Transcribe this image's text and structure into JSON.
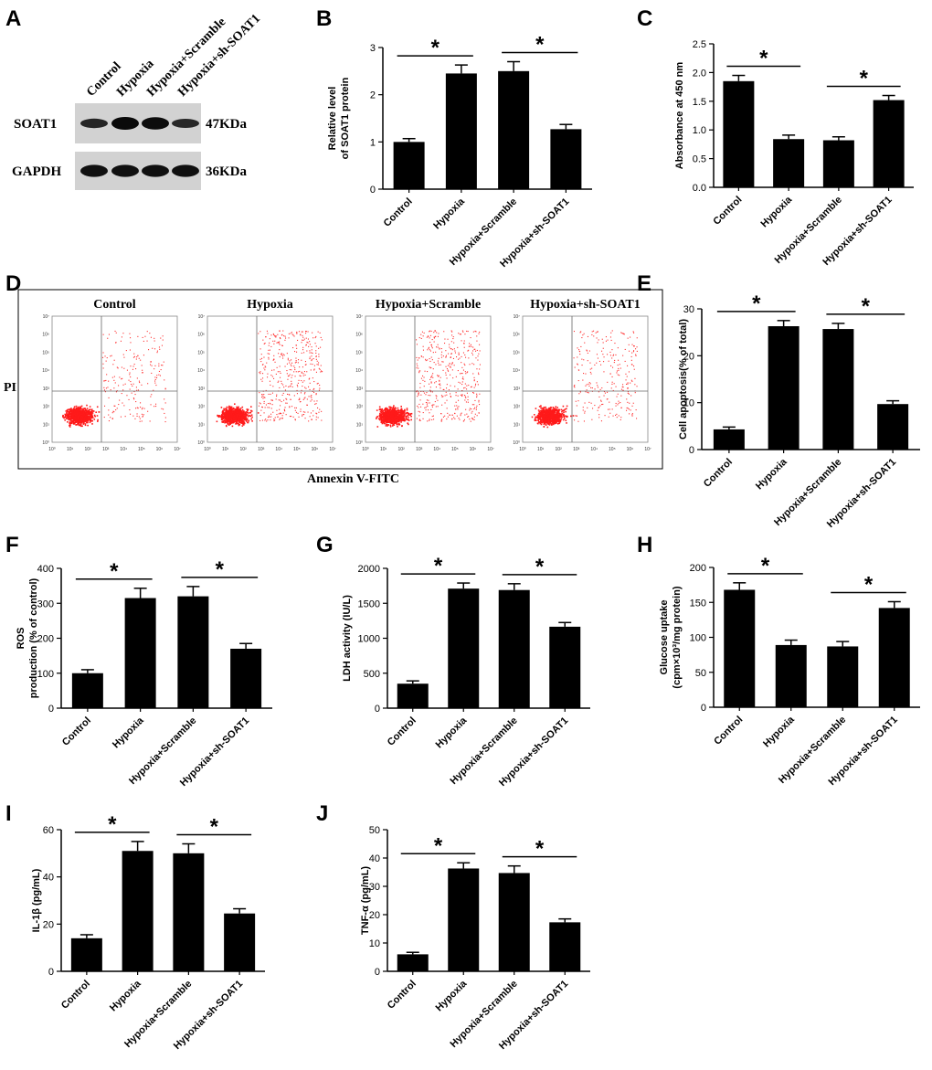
{
  "panel_letters": [
    "A",
    "B",
    "C",
    "D",
    "E",
    "F",
    "G",
    "H",
    "I",
    "J"
  ],
  "western_blot": {
    "lanes": [
      "Control",
      "Hypoxia",
      "Hypoxia+Scramble",
      "Hypoxia+sh-SOAT1"
    ],
    "rows": [
      {
        "label": "SOAT1",
        "size": "47KDa",
        "intensities": [
          0.55,
          1.0,
          0.95,
          0.5
        ]
      },
      {
        "label": "GAPDH",
        "size": "36KDa",
        "intensities": [
          0.9,
          0.9,
          0.9,
          0.9
        ]
      }
    ]
  },
  "flow": {
    "panels": [
      {
        "title": "Control",
        "density": 0.35
      },
      {
        "title": "Hypoxia",
        "density": 0.75
      },
      {
        "title": "Hypoxia+Scramble",
        "density": 0.75
      },
      {
        "title": "Hypoxia+sh-SOAT1",
        "density": 0.45
      }
    ],
    "y_axis_label": "PI",
    "x_axis_label": "Annexin V-FITC",
    "ticks": [
      "10⁰",
      "10¹",
      "10²",
      "10³",
      "10⁴",
      "10⁵",
      "10⁶",
      "10⁷"
    ]
  },
  "significance_mark": "*",
  "chart_data": [
    {
      "id": "B",
      "type": "bar",
      "categories": [
        "Control",
        "Hypoxia",
        "Hypoxia+Scramble",
        "Hypoxia+sh-SOAT1"
      ],
      "values": [
        1.0,
        2.45,
        2.5,
        1.27
      ],
      "errors": [
        0.07,
        0.18,
        0.2,
        0.1
      ],
      "ylabel": [
        "Relative level",
        "of SOAT1 protein"
      ],
      "ylim": [
        0,
        3
      ],
      "ticks": [
        0,
        1,
        2,
        3
      ],
      "tick_labels": [
        "0",
        "1",
        "2",
        "3"
      ],
      "brackets": [
        [
          0,
          1
        ],
        [
          2,
          3
        ]
      ]
    },
    {
      "id": "C",
      "type": "bar",
      "categories": [
        "Control",
        "Hypoxia",
        "Hypoxia+Scramble",
        "Hypoxia+sh-SOAT1"
      ],
      "values": [
        1.85,
        0.84,
        0.82,
        1.52
      ],
      "errors": [
        0.1,
        0.07,
        0.06,
        0.08
      ],
      "ylabel": [
        "Absorbance at 450 nm"
      ],
      "ylim": [
        0,
        2.5
      ],
      "ticks": [
        0,
        0.5,
        1.0,
        1.5,
        2.0,
        2.5
      ],
      "tick_labels": [
        "0.0",
        "0.5",
        "1.0",
        "1.5",
        "2.0",
        "2.5"
      ],
      "brackets": [
        [
          0,
          1
        ],
        [
          2,
          3
        ]
      ]
    },
    {
      "id": "E",
      "type": "bar",
      "categories": [
        "Control",
        "Hypoxia",
        "Hypoxia+Scramble",
        "Hypoxia+sh-SOAT1"
      ],
      "values": [
        4.3,
        26.3,
        25.7,
        9.7
      ],
      "errors": [
        0.5,
        1.2,
        1.2,
        0.7
      ],
      "ylabel": [
        "Cell apoptosis(% of total)"
      ],
      "ylim": [
        0,
        30
      ],
      "ticks": [
        0,
        10,
        20,
        30
      ],
      "tick_labels": [
        "0",
        "10",
        "20",
        "30"
      ],
      "brackets": [
        [
          0,
          1
        ],
        [
          2,
          3
        ]
      ]
    },
    {
      "id": "F",
      "type": "bar",
      "categories": [
        "Control",
        "Hypoxia",
        "Hypoxia+Scramble",
        "Hypoxia+sh-SOAT1"
      ],
      "values": [
        100,
        315,
        320,
        170
      ],
      "errors": [
        10,
        28,
        28,
        15
      ],
      "ylabel": [
        "ROS",
        "production (% of control)"
      ],
      "ylim": [
        0,
        400
      ],
      "ticks": [
        0,
        100,
        200,
        300,
        400
      ],
      "tick_labels": [
        "0",
        "100",
        "200",
        "300",
        "400"
      ],
      "brackets": [
        [
          0,
          1
        ],
        [
          2,
          3
        ]
      ]
    },
    {
      "id": "G",
      "type": "bar",
      "categories": [
        "Control",
        "Hypoxia",
        "Hypoxia+Scramble",
        "Hypoxia+sh-SOAT1"
      ],
      "values": [
        350,
        1710,
        1690,
        1165
      ],
      "errors": [
        40,
        80,
        90,
        60
      ],
      "ylabel": [
        "LDH activity (IU/L)"
      ],
      "ylim": [
        0,
        2000
      ],
      "ticks": [
        0,
        500,
        1000,
        1500,
        2000
      ],
      "tick_labels": [
        "0",
        "500",
        "1000",
        "1500",
        "2000"
      ],
      "brackets": [
        [
          0,
          1
        ],
        [
          2,
          3
        ]
      ]
    },
    {
      "id": "H",
      "type": "bar",
      "categories": [
        "Control",
        "Hypoxia",
        "Hypoxia+Scramble",
        "Hypoxia+sh-SOAT1"
      ],
      "values": [
        168,
        89,
        87,
        142
      ],
      "errors": [
        10,
        7,
        7,
        9
      ],
      "ylabel": [
        "Glucose uptake",
        "(cpm×10³/mg protein)"
      ],
      "ylim": [
        0,
        200
      ],
      "ticks": [
        0,
        50,
        100,
        150,
        200
      ],
      "tick_labels": [
        "0",
        "50",
        "100",
        "150",
        "200"
      ],
      "brackets": [
        [
          0,
          1
        ],
        [
          2,
          3
        ]
      ]
    },
    {
      "id": "I",
      "type": "bar",
      "categories": [
        "Control",
        "Hypoxia",
        "Hypoxia+Scramble",
        "Hypoxia+sh-SOAT1"
      ],
      "values": [
        14,
        51,
        50,
        24.5
      ],
      "errors": [
        1.5,
        4,
        4,
        2
      ],
      "ylabel": [
        "IL-1β  (pg/mL)"
      ],
      "ylim": [
        0,
        60
      ],
      "ticks": [
        0,
        20,
        40,
        60
      ],
      "tick_labels": [
        "0",
        "20",
        "40",
        "60"
      ],
      "brackets": [
        [
          0,
          1
        ],
        [
          2,
          3
        ]
      ]
    },
    {
      "id": "J",
      "type": "bar",
      "categories": [
        "Control",
        "Hypoxia",
        "Hypoxia+Scramble",
        "Hypoxia+sh-SOAT1"
      ],
      "values": [
        6,
        36.3,
        34.7,
        17.3
      ],
      "errors": [
        0.7,
        2,
        2.5,
        1.2
      ],
      "ylabel": [
        "TNF-α (pg/mL)"
      ],
      "ylim": [
        0,
        50
      ],
      "ticks": [
        0,
        10,
        20,
        30,
        40,
        50
      ],
      "tick_labels": [
        "0",
        "10",
        "20",
        "30",
        "40",
        "50"
      ],
      "brackets": [
        [
          0,
          1
        ],
        [
          2,
          3
        ]
      ]
    }
  ]
}
